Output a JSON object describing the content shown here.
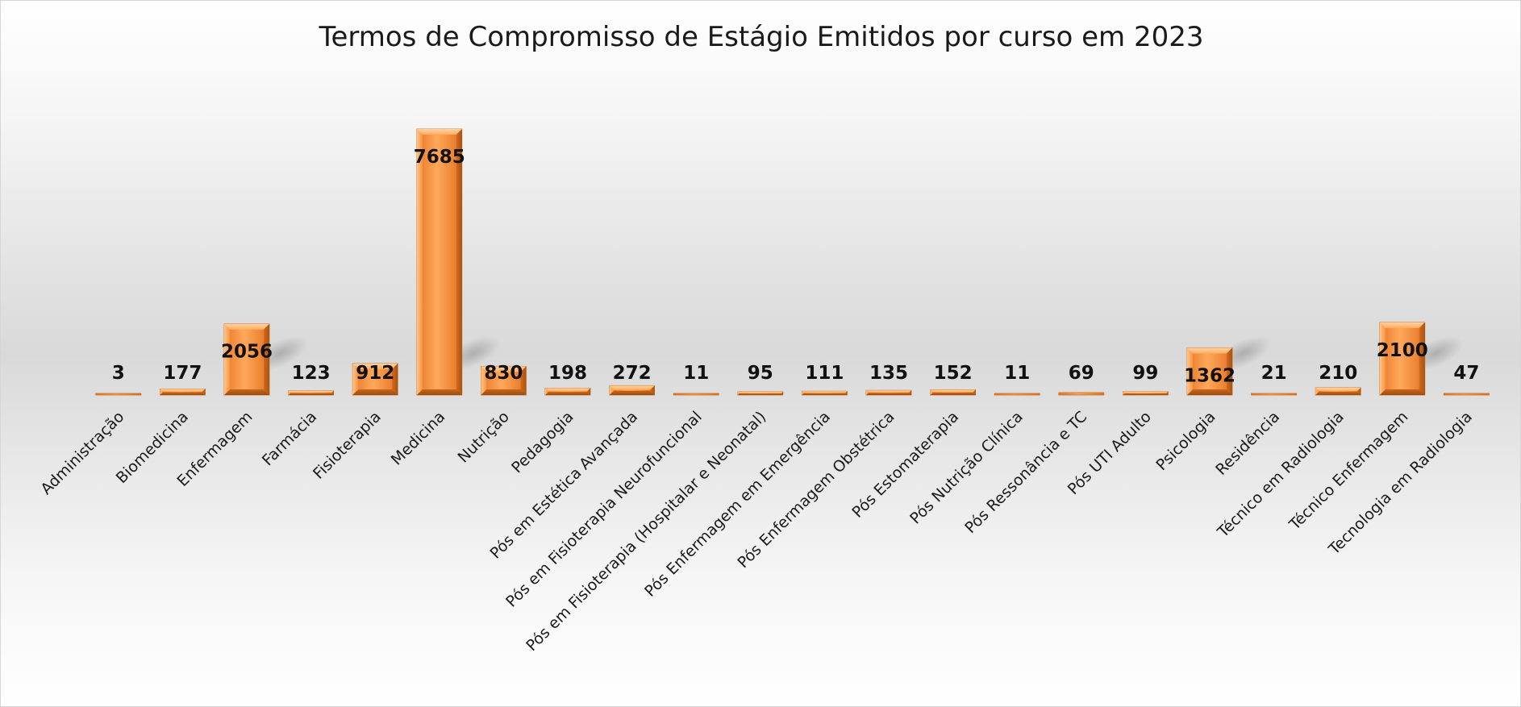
{
  "chart_data": {
    "type": "bar",
    "title": "Termos de Compromisso de Estágio Emitidos por curso em 2023",
    "categories": [
      "Administração",
      "Biomedicina",
      "Enfermagem",
      "Farmácia",
      "Fisioterapia",
      "Medicina",
      "Nutrição",
      "Pedagogia",
      "Pós em Estética Avançada",
      "Pós em Fisioterapia Neurofuncional",
      "Pós em Fisioterapia (Hospitalar e Neonatal)",
      "Pós Enfermagem em Emergência",
      "Pós Enfermagem Obstétrica",
      "Pós Estomaterapia",
      "Pós Nutrição Clínica",
      "Pós Ressonância e TC",
      "Pós UTI Adulto",
      "Psicologia",
      "Residência",
      "Técnico em Radiologia",
      "Técnico Enfermagem",
      "Tecnologia em Radiologia"
    ],
    "values": [
      3,
      177,
      2056,
      123,
      912,
      7685,
      830,
      198,
      272,
      11,
      95,
      111,
      135,
      152,
      11,
      69,
      99,
      1362,
      21,
      210,
      2100,
      47
    ],
    "data_labels": [
      "3",
      "177",
      "2056",
      "123",
      "912",
      "7685",
      "830",
      "198",
      "272",
      "11",
      "95",
      "111",
      "135",
      "152",
      "11",
      "69",
      "99",
      "1362",
      "21",
      "210",
      "2100",
      "47"
    ],
    "ylim": [
      0,
      7685
    ],
    "grid": false,
    "legend": "none",
    "colors": {
      "bar_main": "#f28a30",
      "bar_light": "#ffb36b",
      "bar_dark": "#b85a12",
      "bar_edge": "#c76a1c"
    }
  }
}
